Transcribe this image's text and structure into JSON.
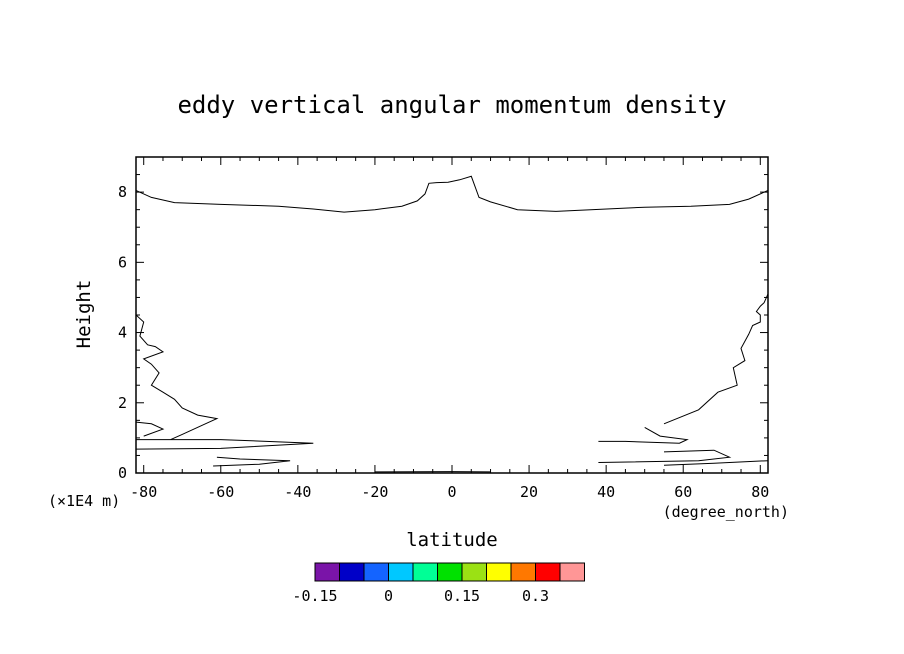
{
  "chart_data": {
    "type": "contour",
    "title": "eddy vertical angular momentum density",
    "xlabel": "latitude",
    "x_units": "(degree_north)",
    "ylabel": "Height",
    "y_units": "(×1E4 m)",
    "xlim": [
      -82,
      82
    ],
    "ylim": [
      0,
      9
    ],
    "x_ticks": [
      "-80",
      "-60",
      "-40",
      "-20",
      "0",
      "20",
      "40",
      "60",
      "80"
    ],
    "y_ticks": [
      "0",
      "2",
      "4",
      "6",
      "8"
    ],
    "x_tick_values": [
      -80,
      -60,
      -40,
      -20,
      0,
      20,
      40,
      60,
      80
    ],
    "y_tick_values": [
      0,
      2,
      4,
      6,
      8
    ],
    "contour_lines": [
      {
        "name": "upper",
        "points": [
          [
            -82,
            8.05
          ],
          [
            -78,
            7.85
          ],
          [
            -72,
            7.7
          ],
          [
            -60,
            7.65
          ],
          [
            -45,
            7.6
          ],
          [
            -36,
            7.52
          ],
          [
            -28,
            7.43
          ],
          [
            -20,
            7.5
          ],
          [
            -13,
            7.6
          ],
          [
            -9,
            7.75
          ],
          [
            -7,
            7.95
          ],
          [
            -6,
            8.25
          ],
          [
            -4,
            8.27
          ],
          [
            -1,
            8.28
          ],
          [
            2,
            8.35
          ],
          [
            5,
            8.45
          ],
          [
            7,
            7.85
          ],
          [
            10,
            7.72
          ],
          [
            17,
            7.5
          ],
          [
            27,
            7.45
          ],
          [
            36,
            7.5
          ],
          [
            50,
            7.57
          ],
          [
            62,
            7.6
          ],
          [
            72,
            7.65
          ],
          [
            77,
            7.8
          ],
          [
            82,
            8.05
          ]
        ]
      },
      {
        "name": "left-1",
        "points": [
          [
            -82,
            4.5
          ],
          [
            -80,
            4.3
          ],
          [
            -81,
            3.9
          ],
          [
            -79,
            3.65
          ],
          [
            -77,
            3.6
          ],
          [
            -75,
            3.45
          ],
          [
            -80,
            3.25
          ],
          [
            -78,
            3.1
          ],
          [
            -76,
            2.85
          ],
          [
            -78,
            2.5
          ],
          [
            -75,
            2.3
          ],
          [
            -72,
            2.1
          ],
          [
            -70,
            1.85
          ],
          [
            -66,
            1.65
          ],
          [
            -61,
            1.55
          ],
          [
            -64,
            1.4
          ],
          [
            -70,
            1.1
          ],
          [
            -73,
            0.95
          ]
        ]
      },
      {
        "name": "left-2",
        "points": [
          [
            -82,
            1.45
          ],
          [
            -78,
            1.4
          ],
          [
            -75,
            1.25
          ],
          [
            -80,
            1.05
          ]
        ]
      },
      {
        "name": "left-3",
        "points": [
          [
            -82,
            0.95
          ],
          [
            -60,
            0.95
          ],
          [
            -36,
            0.85
          ],
          [
            -60,
            0.7
          ],
          [
            -82,
            0.68
          ]
        ]
      },
      {
        "name": "left-4",
        "points": [
          [
            -61,
            0.45
          ],
          [
            -55,
            0.4
          ],
          [
            -42,
            0.35
          ],
          [
            -50,
            0.25
          ],
          [
            -62,
            0.2
          ]
        ]
      },
      {
        "name": "right-1",
        "points": [
          [
            82,
            5.1
          ],
          [
            81,
            4.85
          ],
          [
            80,
            4.75
          ],
          [
            79,
            4.6
          ],
          [
            80,
            4.5
          ],
          [
            80,
            4.3
          ],
          [
            78,
            4.2
          ],
          [
            77,
            3.95
          ],
          [
            75,
            3.55
          ],
          [
            76,
            3.2
          ],
          [
            73,
            3.0
          ],
          [
            74,
            2.5
          ],
          [
            69,
            2.3
          ],
          [
            64,
            1.8
          ],
          [
            55,
            1.4
          ]
        ]
      },
      {
        "name": "right-2",
        "points": [
          [
            50,
            1.3
          ],
          [
            54,
            1.05
          ],
          [
            61,
            0.95
          ],
          [
            59,
            0.85
          ],
          [
            45,
            0.9
          ],
          [
            38,
            0.9
          ]
        ]
      },
      {
        "name": "right-3",
        "points": [
          [
            55,
            0.6
          ],
          [
            68,
            0.65
          ],
          [
            72,
            0.45
          ],
          [
            64,
            0.35
          ],
          [
            38,
            0.3
          ]
        ]
      },
      {
        "name": "right-4",
        "points": [
          [
            82,
            0.35
          ],
          [
            68,
            0.28
          ],
          [
            55,
            0.22
          ]
        ]
      },
      {
        "name": "bottom",
        "points": [
          [
            -20,
            0.03
          ],
          [
            0,
            0.04
          ],
          [
            10,
            0.03
          ]
        ]
      }
    ],
    "legend": {
      "colors": [
        "#7a14a8",
        "#0000c8",
        "#1464ff",
        "#00c8ff",
        "#00ff96",
        "#00e100",
        "#9be114",
        "#ffff00",
        "#ff7800",
        "#ff0000",
        "#ff9696"
      ],
      "labels": [
        "-0.15",
        "0",
        "0.15",
        "0.3"
      ],
      "label_positions": [
        0,
        3,
        6,
        9
      ]
    }
  }
}
